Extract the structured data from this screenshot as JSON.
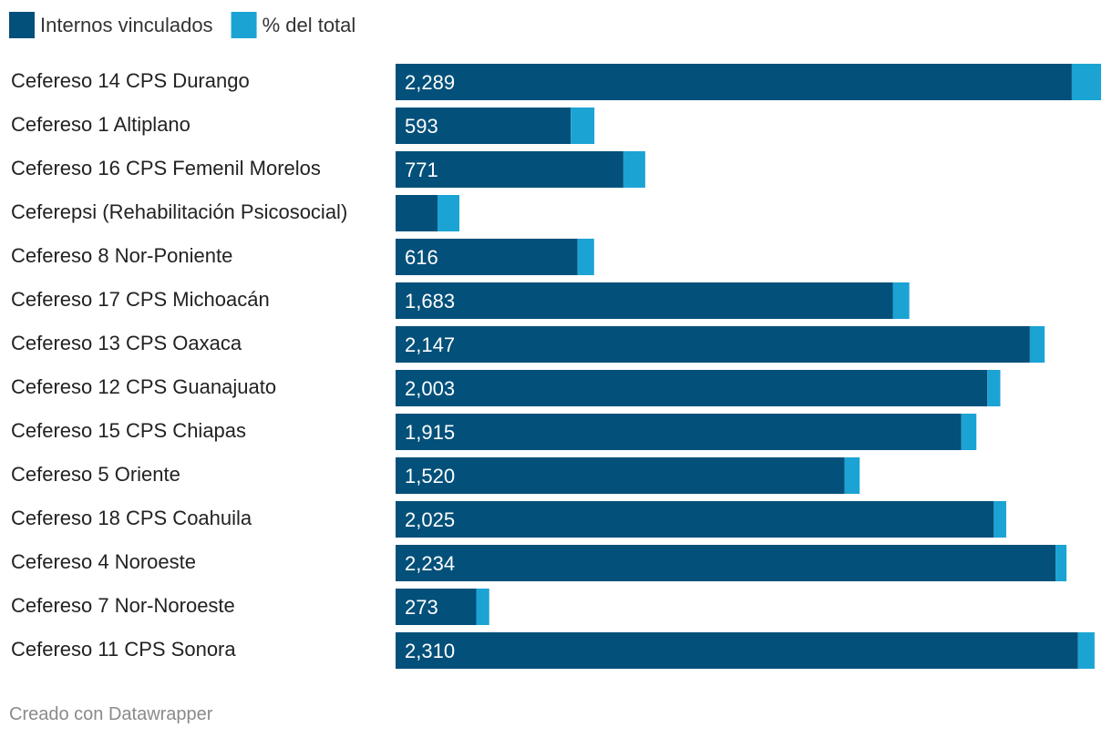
{
  "chart_data": {
    "type": "bar",
    "stacked": true,
    "orientation": "horizontal",
    "legend": [
      {
        "name": "Internos vinculados",
        "color": "#03507a"
      },
      {
        "name": "% del total",
        "color": "#1ba3d4"
      }
    ],
    "categories": [
      "Cefereso 14 CPS Durango",
      "Cefereso 1 Altiplano",
      "Cefereso 16 CPS Femenil Morelos",
      "Ceferepsi (Rehabilitación Psicosocial)",
      "Cefereso 8 Nor-Poniente",
      "Cefereso 17 CPS Michoacán",
      "Cefereso 13 CPS Oaxaca",
      "Cefereso 12 CPS Guanajuato",
      "Cefereso 15 CPS Chiapas",
      "Cefereso 5 Oriente",
      "Cefereso 18 CPS Coahuila",
      "Cefereso 4 Noroeste",
      "Cefereso 7 Nor-Noroeste",
      "Cefereso 11 CPS Sonora"
    ],
    "series": [
      {
        "name": "Internos vinculados",
        "values": [
          2289,
          593,
          771,
          142,
          616,
          1683,
          2147,
          2003,
          1915,
          1520,
          2025,
          2234,
          273,
          2310
        ],
        "labels": [
          "2,289",
          "593",
          "771",
          "",
          "616",
          "1,683",
          "2,147",
          "2,003",
          "1,915",
          "1,520",
          "2,025",
          "2,234",
          "273",
          "2,310"
        ]
      },
      {
        "name": "% del total",
        "values": [
          99,
          80,
          74,
          74,
          56,
          56,
          50,
          44,
          51,
          51,
          42,
          37,
          44,
          56
        ]
      }
    ],
    "xlim": [
      0,
      2388
    ]
  },
  "footer": {
    "credit": "Creado con Datawrapper"
  }
}
